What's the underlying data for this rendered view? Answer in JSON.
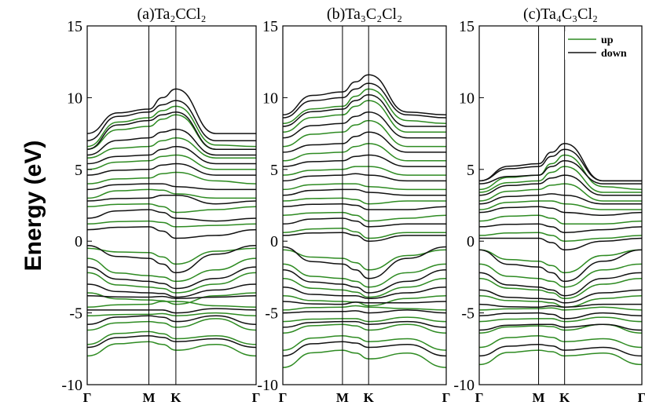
{
  "chart_data": [
    {
      "type": "line",
      "title": "(a)Ta₂CCl₂",
      "ylabel": "Energy (eV)",
      "ylim": [
        -10,
        15
      ],
      "yticks": [
        15,
        10,
        5,
        0,
        -5,
        -10
      ],
      "kpoint_labels": [
        "Γ",
        "M",
        "K",
        "Γ"
      ],
      "kpoint_positions": [
        0,
        0.365,
        0.525,
        1.0
      ],
      "series": [
        {
          "name": "up",
          "color": "#2e8b22",
          "bands": [
            [
              -8.0,
              -7.0,
              -7.6,
              -7.2,
              -8.0
            ],
            [
              -7.2,
              -6.3,
              -6.8,
              -6.6,
              -7.2
            ],
            [
              -6.2,
              -5.6,
              -6.0,
              -5.4,
              -6.2
            ],
            [
              -5.2,
              -5.1,
              -5.2,
              -5.0,
              -5.2
            ],
            [
              -4.6,
              -4.4,
              -4.2,
              -4.5,
              -4.6
            ],
            [
              -3.6,
              -4.1,
              -4.4,
              -3.8,
              -3.6
            ],
            [
              -2.2,
              -3.2,
              -3.6,
              -3.0,
              -2.2
            ],
            [
              -1.2,
              -2.4,
              -2.8,
              -2.0,
              -1.2
            ],
            [
              -0.5,
              -0.8,
              -1.6,
              -0.7,
              -0.5
            ],
            [
              1.2,
              1.4,
              1.0,
              1.1,
              1.2
            ],
            [
              2.4,
              2.6,
              2.0,
              2.2,
              2.4
            ],
            [
              3.0,
              3.6,
              3.3,
              3.0,
              3.0
            ],
            [
              4.0,
              4.4,
              4.8,
              4.2,
              4.0
            ],
            [
              5.0,
              5.6,
              6.0,
              5.0,
              5.0
            ],
            [
              5.8,
              6.6,
              7.2,
              5.8,
              5.8
            ],
            [
              6.4,
              8.0,
              8.8,
              6.4,
              6.4
            ],
            [
              6.6,
              8.6,
              9.4,
              6.7,
              6.6
            ]
          ]
        },
        {
          "name": "down",
          "color": "#111111",
          "bands": [
            [
              -7.4,
              -6.6,
              -7.0,
              -6.8,
              -7.4
            ],
            [
              -5.8,
              -5.2,
              -5.6,
              -5.2,
              -5.8
            ],
            [
              -4.8,
              -4.8,
              -5.0,
              -4.7,
              -4.8
            ],
            [
              -3.8,
              -3.9,
              -4.0,
              -3.9,
              -3.8
            ],
            [
              -3.0,
              -3.6,
              -3.9,
              -3.4,
              -3.0
            ],
            [
              -1.8,
              -2.8,
              -3.3,
              -2.6,
              -1.8
            ],
            [
              -0.3,
              -1.2,
              -2.2,
              -0.9,
              -0.3
            ],
            [
              0.8,
              1.0,
              0.2,
              0.4,
              0.8
            ],
            [
              1.6,
              2.2,
              1.6,
              1.4,
              1.6
            ],
            [
              2.8,
              3.0,
              3.2,
              2.6,
              2.8
            ],
            [
              3.6,
              4.0,
              3.8,
              3.6,
              3.6
            ],
            [
              4.6,
              5.0,
              5.4,
              4.6,
              4.6
            ],
            [
              5.4,
              6.0,
              6.6,
              5.4,
              5.4
            ],
            [
              6.0,
              7.2,
              7.8,
              6.0,
              6.0
            ],
            [
              6.4,
              8.4,
              9.0,
              6.4,
              6.4
            ],
            [
              7.0,
              9.0,
              9.8,
              7.0,
              7.0
            ],
            [
              7.5,
              9.2,
              10.6,
              7.5,
              7.5
            ]
          ]
        }
      ]
    },
    {
      "type": "line",
      "title": "(b)Ta₃C₂Cl₂",
      "ylabel": "",
      "ylim": [
        -10,
        15
      ],
      "yticks": [
        15,
        10,
        5,
        0,
        -5,
        -10
      ],
      "kpoint_labels": [
        "Γ",
        "M",
        "K",
        "Γ"
      ],
      "kpoint_positions": [
        0,
        0.365,
        0.525,
        1.0
      ],
      "series": [
        {
          "name": "up",
          "color": "#2e8b22",
          "bands": [
            [
              -8.8,
              -7.6,
              -8.2,
              -7.8,
              -8.8
            ],
            [
              -7.6,
              -6.6,
              -7.0,
              -6.8,
              -7.6
            ],
            [
              -6.4,
              -5.8,
              -6.2,
              -5.8,
              -6.4
            ],
            [
              -5.6,
              -5.4,
              -5.6,
              -5.3,
              -5.6
            ],
            [
              -4.8,
              -4.6,
              -4.6,
              -4.7,
              -4.8
            ],
            [
              -3.8,
              -4.2,
              -4.5,
              -4.0,
              -3.8
            ],
            [
              -2.6,
              -3.4,
              -3.9,
              -3.2,
              -2.6
            ],
            [
              -1.6,
              -2.6,
              -3.2,
              -2.2,
              -1.6
            ],
            [
              -0.6,
              -1.2,
              -2.0,
              -1.0,
              -0.6
            ],
            [
              0.6,
              0.9,
              0.2,
              0.6,
              0.6
            ],
            [
              1.8,
              2.0,
              1.4,
              1.6,
              1.8
            ],
            [
              2.8,
              3.0,
              2.6,
              2.8,
              2.8
            ],
            [
              3.6,
              4.0,
              3.8,
              3.6,
              3.6
            ],
            [
              4.6,
              5.0,
              5.2,
              4.6,
              4.6
            ],
            [
              5.6,
              6.2,
              6.8,
              5.6,
              5.6
            ],
            [
              6.6,
              7.6,
              8.4,
              6.6,
              6.6
            ],
            [
              7.6,
              8.8,
              9.8,
              7.6,
              7.6
            ],
            [
              8.2,
              9.4,
              10.6,
              8.4,
              8.2
            ]
          ]
        },
        {
          "name": "down",
          "color": "#111111",
          "bands": [
            [
              -8.0,
              -7.0,
              -7.4,
              -7.2,
              -8.0
            ],
            [
              -6.0,
              -5.6,
              -5.8,
              -5.6,
              -6.0
            ],
            [
              -5.0,
              -4.9,
              -5.0,
              -4.8,
              -5.0
            ],
            [
              -4.2,
              -4.4,
              -4.3,
              -4.3,
              -4.2
            ],
            [
              -3.2,
              -3.8,
              -4.0,
              -3.6,
              -3.2
            ],
            [
              -2.0,
              -3.0,
              -3.6,
              -2.8,
              -2.0
            ],
            [
              -0.4,
              -1.6,
              -2.6,
              -1.2,
              -0.4
            ],
            [
              0.4,
              0.6,
              0.0,
              0.4,
              0.4
            ],
            [
              1.2,
              1.6,
              1.0,
              1.2,
              1.2
            ],
            [
              2.4,
              2.6,
              2.2,
              2.2,
              2.4
            ],
            [
              3.2,
              3.6,
              3.4,
              3.2,
              3.2
            ],
            [
              4.2,
              4.6,
              4.6,
              4.2,
              4.2
            ],
            [
              5.2,
              5.6,
              6.0,
              5.2,
              5.2
            ],
            [
              6.2,
              6.8,
              7.6,
              6.2,
              6.2
            ],
            [
              7.2,
              8.2,
              9.0,
              7.2,
              7.2
            ],
            [
              8.0,
              9.2,
              10.2,
              8.0,
              8.0
            ],
            [
              8.6,
              10.0,
              11.0,
              8.8,
              8.6
            ],
            [
              8.8,
              10.4,
              11.6,
              9.0,
              8.8
            ]
          ]
        }
      ]
    },
    {
      "type": "line",
      "title": "(c)Ta₄C₃Cl₂",
      "ylabel": "",
      "ylim": [
        -10,
        15
      ],
      "yticks": [
        15,
        10,
        5,
        0,
        -5,
        -10
      ],
      "kpoint_labels": [
        "Γ",
        "M",
        "K",
        "Γ"
      ],
      "kpoint_positions": [
        0,
        0.365,
        0.525,
        1.0
      ],
      "legend": "top-right",
      "series": [
        {
          "name": "up",
          "color": "#2e8b22",
          "bands": [
            [
              -8.6,
              -7.6,
              -8.0,
              -7.8,
              -8.6
            ],
            [
              -7.4,
              -6.6,
              -7.0,
              -6.8,
              -7.4
            ],
            [
              -6.4,
              -5.9,
              -6.2,
              -5.8,
              -6.4
            ],
            [
              -5.6,
              -5.4,
              -5.6,
              -5.3,
              -5.6
            ],
            [
              -4.8,
              -4.7,
              -4.8,
              -4.6,
              -4.8
            ],
            [
              -3.8,
              -4.2,
              -4.6,
              -4.0,
              -3.8
            ],
            [
              -2.6,
              -3.4,
              -4.0,
              -3.0,
              -2.6
            ],
            [
              -1.6,
              -2.6,
              -3.2,
              -2.0,
              -1.6
            ],
            [
              -0.6,
              -1.4,
              -2.2,
              -1.0,
              -0.6
            ],
            [
              0.4,
              0.6,
              0.0,
              0.2,
              0.4
            ],
            [
              1.4,
              1.8,
              1.2,
              1.2,
              1.4
            ],
            [
              2.2,
              2.8,
              2.6,
              2.2,
              2.2
            ],
            [
              2.8,
              3.6,
              4.0,
              2.8,
              2.8
            ],
            [
              3.4,
              4.2,
              5.2,
              3.4,
              3.4
            ],
            [
              3.6,
              4.6,
              6.0,
              3.8,
              3.6
            ]
          ]
        },
        {
          "name": "down",
          "color": "#111111",
          "bands": [
            [
              -8.0,
              -7.2,
              -7.6,
              -7.4,
              -8.0
            ],
            [
              -6.2,
              -5.8,
              -6.0,
              -5.8,
              -6.2
            ],
            [
              -5.2,
              -5.0,
              -5.4,
              -5.0,
              -5.2
            ],
            [
              -4.4,
              -4.6,
              -4.6,
              -4.4,
              -4.4
            ],
            [
              -3.4,
              -4.0,
              -4.3,
              -3.6,
              -3.4
            ],
            [
              -2.2,
              -3.2,
              -3.8,
              -2.6,
              -2.2
            ],
            [
              -0.6,
              -1.8,
              -2.8,
              -1.4,
              -0.6
            ],
            [
              0.2,
              0.2,
              -0.6,
              0.0,
              0.2
            ],
            [
              1.0,
              1.2,
              0.6,
              0.8,
              1.0
            ],
            [
              2.0,
              2.4,
              2.0,
              1.8,
              2.0
            ],
            [
              2.6,
              3.2,
              3.2,
              2.6,
              2.6
            ],
            [
              3.2,
              4.0,
              4.6,
              3.2,
              3.2
            ],
            [
              4.0,
              4.6,
              5.6,
              4.0,
              4.0
            ],
            [
              4.2,
              5.2,
              6.4,
              4.2,
              4.2
            ],
            [
              4.2,
              5.4,
              6.8,
              4.2,
              4.2
            ]
          ]
        }
      ]
    }
  ]
}
